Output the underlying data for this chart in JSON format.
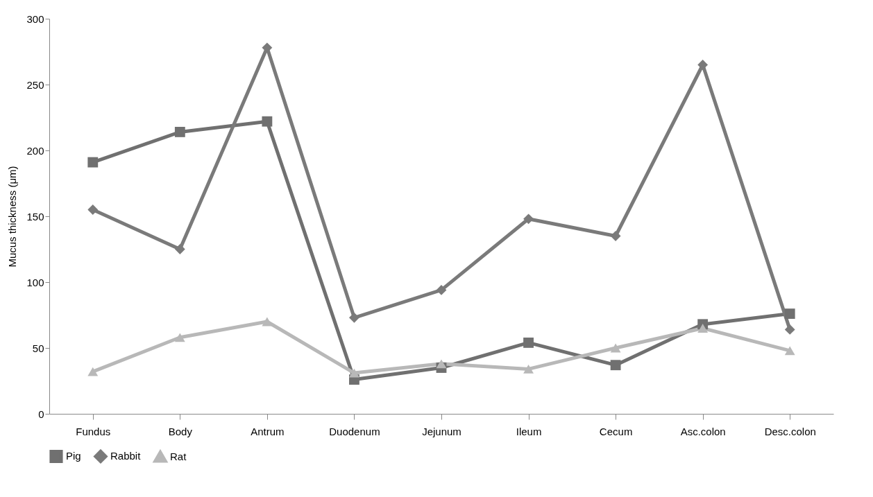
{
  "chart_data": {
    "type": "line",
    "ylabel": "Mucus thickness (μm)",
    "categories": [
      "Fundus",
      "Body",
      "Antrum",
      "Duodenum",
      "Jejunum",
      "Ileum",
      "Cecum",
      "Asc.colon",
      "Desc.colon"
    ],
    "ylim": [
      0,
      300
    ],
    "yticks": [
      0,
      50,
      100,
      150,
      200,
      250,
      300
    ],
    "grid": false,
    "legend": "bottom",
    "series": [
      {
        "name": "Pig",
        "color": "#707070",
        "marker": "square",
        "values": [
          191,
          214,
          222,
          26,
          35,
          54,
          37,
          68,
          76
        ]
      },
      {
        "name": "Rabbit",
        "color": "#7a7a7a",
        "marker": "diamond",
        "values": [
          155,
          125,
          278,
          73,
          94,
          148,
          135,
          265,
          64
        ]
      },
      {
        "name": "Rat",
        "color": "#b8b8b8",
        "marker": "triangle",
        "values": [
          32,
          58,
          70,
          31,
          38,
          34,
          50,
          65,
          48
        ]
      }
    ]
  }
}
